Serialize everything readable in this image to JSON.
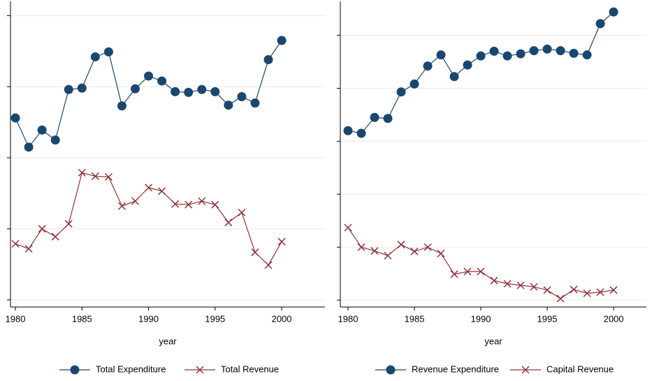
{
  "chart_data": [
    {
      "type": "line",
      "x_label": "year",
      "x": [
        1980,
        1981,
        1982,
        1983,
        1984,
        1985,
        1986,
        1987,
        1988,
        1989,
        1990,
        1991,
        1992,
        1993,
        1994,
        1995,
        1996,
        1997,
        1998,
        1999,
        2000
      ],
      "xlim": [
        1979.63,
        2003.25
      ],
      "xticks": [
        1980,
        1985,
        1990,
        1995,
        2000
      ],
      "ylim": [
        -0.1,
        4.2
      ],
      "yticks": [
        0,
        1,
        2,
        3,
        4
      ],
      "grid": true,
      "series": [
        {
          "name": "Total Expenditure",
          "color": "#1a476f",
          "marker": "circle",
          "values": [
            2.56,
            2.15,
            2.39,
            2.25,
            2.96,
            2.98,
            3.42,
            3.49,
            2.73,
            2.97,
            3.15,
            3.08,
            2.93,
            2.92,
            2.96,
            2.93,
            2.74,
            2.86,
            2.77,
            3.38,
            3.65
          ]
        },
        {
          "name": "Total Revenue",
          "color": "#90353b",
          "marker": "x",
          "values": [
            0.79,
            0.72,
            1.0,
            0.89,
            1.07,
            1.79,
            1.74,
            1.73,
            1.32,
            1.39,
            1.58,
            1.53,
            1.35,
            1.34,
            1.39,
            1.34,
            1.09,
            1.23,
            0.67,
            0.49,
            0.82
          ]
        }
      ]
    },
    {
      "type": "line",
      "x_label": "year",
      "x": [
        1980,
        1981,
        1982,
        1983,
        1984,
        1985,
        1986,
        1987,
        1988,
        1989,
        1990,
        1991,
        1992,
        1993,
        1994,
        1995,
        1996,
        1997,
        1998,
        1999,
        2000
      ],
      "xlim": [
        1979.42,
        2002.47
      ],
      "xticks": [
        1980,
        1985,
        1990,
        1995,
        2000
      ],
      "ylim": [
        -0.13,
        5.64
      ],
      "yticks": [
        0,
        1,
        2,
        3,
        4,
        5
      ],
      "grid": true,
      "series": [
        {
          "name": "Revenue Expenditure",
          "color": "#1a476f",
          "marker": "circle",
          "values": [
            3.2,
            3.15,
            3.45,
            3.43,
            3.93,
            4.08,
            4.42,
            4.63,
            4.22,
            4.44,
            4.61,
            4.7,
            4.61,
            4.65,
            4.71,
            4.74,
            4.71,
            4.66,
            4.63,
            5.22,
            5.44
          ]
        },
        {
          "name": "Capital Revenue",
          "color": "#90353b",
          "marker": "x",
          "values": [
            1.37,
            1.0,
            0.93,
            0.84,
            1.05,
            0.92,
            1.0,
            0.88,
            0.49,
            0.54,
            0.54,
            0.37,
            0.31,
            0.28,
            0.25,
            0.19,
            0.03,
            0.2,
            0.13,
            0.15,
            0.19
          ]
        }
      ]
    }
  ]
}
